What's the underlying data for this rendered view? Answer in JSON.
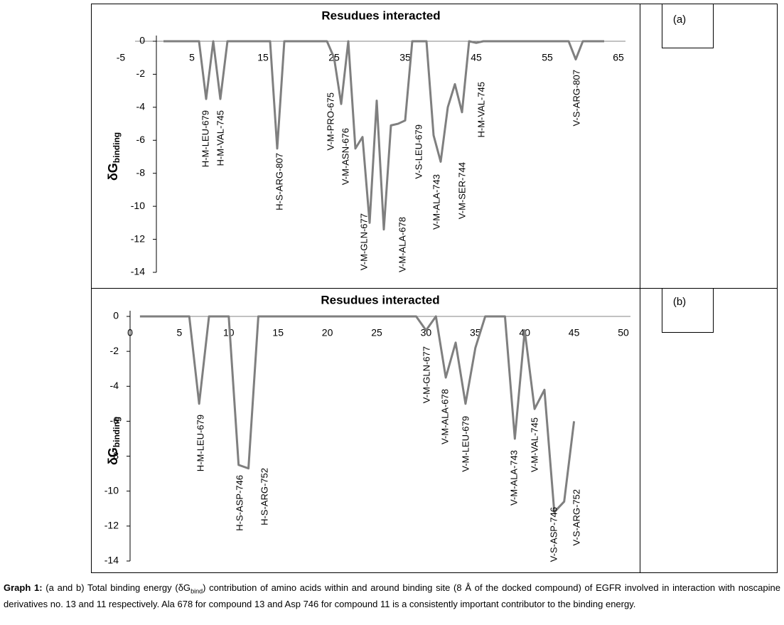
{
  "chart_data": [
    {
      "type": "line",
      "title": "Resudues interacted",
      "panel_label": "(a)",
      "y_label": {
        "main": "δG",
        "sub": "binding"
      },
      "x": [
        1,
        6,
        7,
        8,
        9,
        10,
        16,
        17,
        18,
        24,
        25,
        26,
        27,
        28,
        29,
        30,
        31,
        32,
        33,
        34,
        35,
        36,
        38,
        39,
        40,
        41,
        42,
        43,
        44,
        45,
        46,
        58,
        59,
        60,
        63
      ],
      "values": [
        0,
        0,
        -3.5,
        0,
        -3.5,
        0,
        0,
        -6.5,
        0,
        0,
        -1,
        -3.8,
        0,
        -6.5,
        -5.8,
        -11,
        -3.6,
        -11.4,
        -5.1,
        -5,
        -4.8,
        0,
        0,
        -5.7,
        -7.3,
        -4,
        -2.6,
        -4.3,
        0,
        -0.1,
        0,
        0,
        -1.1,
        0,
        0
      ],
      "color": "#7f7f7f",
      "xlim": [
        -5,
        65
      ],
      "xticks": [
        -5,
        5,
        15,
        25,
        35,
        45,
        55,
        65
      ],
      "ylim": [
        -14,
        0
      ],
      "yticks": [
        0,
        -2,
        -4,
        -6,
        -8,
        -10,
        -12,
        -14
      ],
      "annotations": [
        "H-M-LEU-679",
        "H-M-VAL-745",
        "H-S-ARG-807",
        "V-M-PRO-675",
        "V-M-ASN-676",
        "V-M-GLN-677",
        "V-M-ALA-678",
        "V-S-LEU-679",
        "V-M-ALA-743",
        "V-M-SER-744",
        "H-M-VAL-745",
        "V-S-ARG-807"
      ]
    },
    {
      "type": "line",
      "title": "Resudues interacted",
      "panel_label": "(b)",
      "y_label": {
        "main": "δG",
        "sub": "binding"
      },
      "x": [
        1,
        6,
        7,
        8,
        10,
        11,
        12,
        13,
        29,
        30,
        31,
        32,
        33,
        34,
        35,
        36,
        38,
        39,
        40,
        41,
        42,
        43,
        44,
        45
      ],
      "values": [
        0,
        0,
        -5,
        0,
        0,
        -8.5,
        -8.7,
        0,
        0,
        -0.8,
        0,
        -3.5,
        -1.5,
        -5,
        -1.8,
        0,
        0,
        -7,
        -0.8,
        -5.3,
        -4.2,
        -11.2,
        -10.6,
        -6
      ],
      "color": "#7f7f7f",
      "xlim": [
        0,
        50
      ],
      "xticks": [
        0,
        5,
        10,
        15,
        20,
        25,
        30,
        35,
        40,
        45,
        50
      ],
      "ylim": [
        -14,
        0
      ],
      "yticks": [
        0,
        -2,
        -4,
        -6,
        -8,
        -10,
        -12,
        -14
      ],
      "annotations": [
        "H-M-LEU-679",
        "H-S-ASP-746",
        "H-S-ARG-752",
        "V-M-GLN-677",
        "V-M-ALA-678",
        "V-M-LEU-679",
        "V-M-ALA-743",
        "V-M-VAL-745",
        "V-S-ASP-746",
        "V-S-ARG-752"
      ]
    }
  ],
  "caption": {
    "label": "Graph 1:",
    "before": " (a and b) Total binding energy (δG",
    "sub": "bind",
    "after": ") contribution of amino acids within and around binding site (8 Å of the docked compound) of EGFR involved in interaction with noscapine derivatives no. 13 and 11 respectively. Ala 678 for compound 13 and Asp 746 for compound 11 is a consistently important contributor to the binding energy."
  }
}
